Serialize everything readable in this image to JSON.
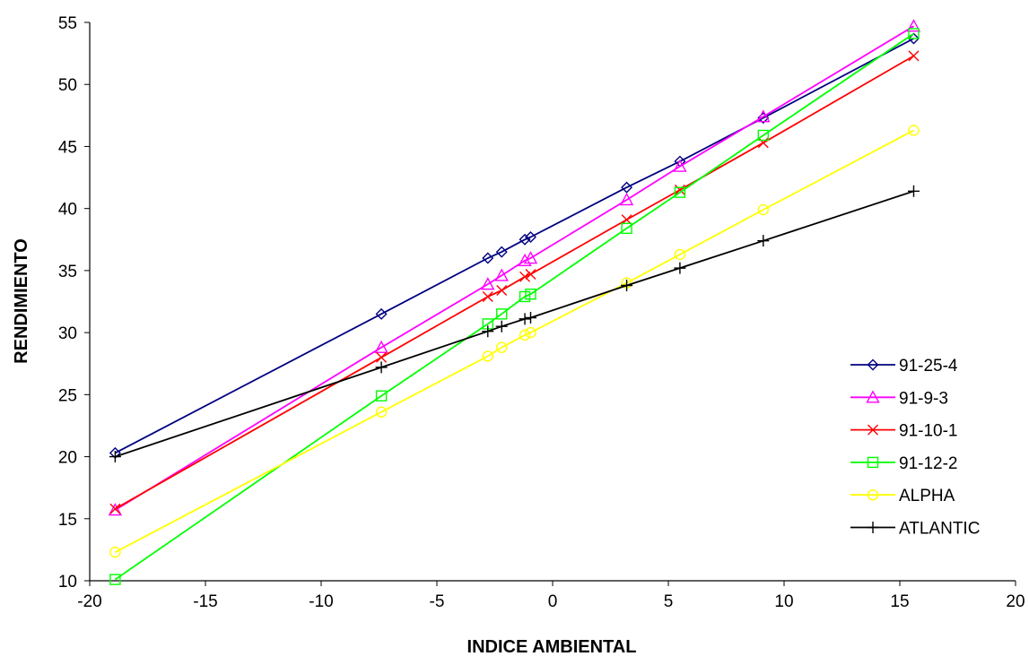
{
  "chart_data": {
    "type": "line",
    "title": "",
    "xlabel": "INDICE AMBIENTAL",
    "ylabel": "RENDIMIENTO",
    "xlim": [
      -20,
      20
    ],
    "ylim": [
      10,
      55
    ],
    "x_ticks": [
      "-20",
      "-15",
      "-10",
      "-5",
      "0",
      "5",
      "10",
      "15",
      "20"
    ],
    "y_ticks": [
      "10",
      "15",
      "20",
      "25",
      "30",
      "35",
      "40",
      "45",
      "50",
      "55"
    ],
    "grid": false,
    "legend_position": "right",
    "x": [
      -18.9,
      -7.4,
      -2.8,
      -2.2,
      -1.2,
      -0.95,
      3.2,
      5.5,
      9.1,
      15.6
    ],
    "series": [
      {
        "name": "91-25-4",
        "color": "#000080",
        "marker": "diamond",
        "values": [
          20.3,
          31.5,
          36.0,
          36.5,
          37.5,
          37.7,
          41.7,
          43.8,
          47.3,
          53.7
        ]
      },
      {
        "name": "91-9-3",
        "color": "#FF00FF",
        "marker": "triangle",
        "values": [
          15.7,
          28.8,
          33.9,
          34.6,
          35.8,
          36.0,
          40.7,
          43.4,
          47.4,
          54.7
        ]
      },
      {
        "name": "91-10-1",
        "color": "#FF0000",
        "marker": "x",
        "values": [
          15.8,
          28.0,
          32.9,
          33.4,
          34.5,
          34.7,
          39.1,
          41.5,
          45.3,
          52.3
        ]
      },
      {
        "name": "91-12-2",
        "color": "#00FF00",
        "marker": "square",
        "values": [
          10.1,
          24.9,
          30.7,
          31.5,
          32.9,
          33.1,
          38.4,
          41.3,
          45.9,
          54.1
        ]
      },
      {
        "name": "ALPHA",
        "color": "#FFFF00",
        "marker": "circle",
        "values": [
          12.3,
          23.6,
          28.1,
          28.8,
          29.8,
          30.0,
          34.0,
          36.3,
          39.9,
          46.3
        ]
      },
      {
        "name": "ATLANTIC",
        "color": "#000000",
        "marker": "plus",
        "values": [
          20.0,
          27.2,
          30.1,
          30.5,
          31.1,
          31.2,
          33.8,
          35.2,
          37.4,
          41.4
        ]
      }
    ]
  }
}
